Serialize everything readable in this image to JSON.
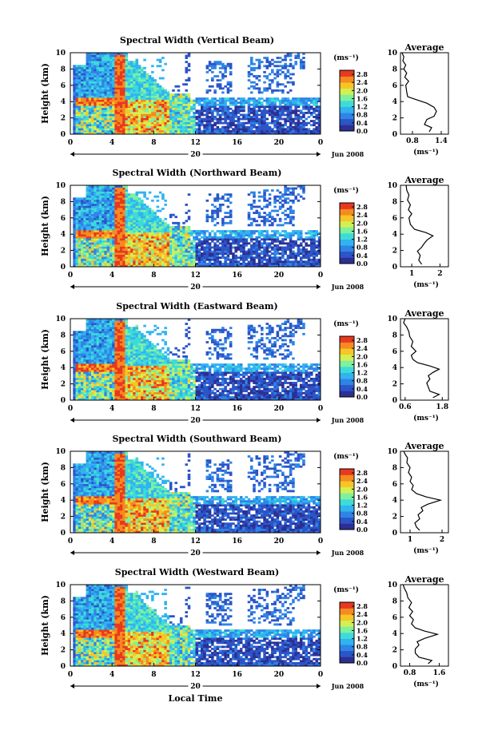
{
  "figure": {
    "xlabel": "Local Time",
    "date_label": "Jun 2008",
    "day_label": "20",
    "unit_label": "(ms⁻¹)",
    "average_title": "Average",
    "colors": {
      "colormap": [
        "#2c2f93",
        "#2b55c8",
        "#2f84e6",
        "#30b3f0",
        "#3ddbd8",
        "#7ff0a0",
        "#d3f052",
        "#f7c527",
        "#f58a1f",
        "#e8381e"
      ],
      "line": "#000000"
    }
  },
  "chart_data": [
    {
      "type": "heatmap",
      "title": "Spectral Width (Vertical Beam)",
      "ylabel": "Height (km)",
      "x_ticks": [
        "0",
        "4",
        "8",
        "12",
        "16",
        "20",
        "0"
      ],
      "y_ticks": [
        "0",
        "2",
        "4",
        "6",
        "8",
        "10"
      ],
      "xlim": [
        0,
        24
      ],
      "ylim": [
        0,
        10
      ],
      "colorbar": {
        "label": "(ms⁻¹)",
        "ticks": [
          "0.0",
          "0.4",
          "0.8",
          "1.2",
          "1.6",
          "2.0",
          "2.4",
          "2.8"
        ],
        "range": [
          0,
          3.0
        ]
      },
      "average_profile": {
        "xlabel": "(ms⁻¹)",
        "x_ticks": [
          "0.8",
          "1.4"
        ],
        "xlim": [
          0.55,
          1.55
        ],
        "y_ticks": [
          "0",
          "2",
          "4",
          "6",
          "8",
          "10"
        ],
        "points": [
          [
            1.15,
            0.3
          ],
          [
            1.2,
            0.8
          ],
          [
            1.05,
            1.2
          ],
          [
            1.1,
            1.8
          ],
          [
            1.25,
            2.2
          ],
          [
            1.3,
            2.8
          ],
          [
            1.25,
            3.3
          ],
          [
            1.1,
            3.8
          ],
          [
            0.9,
            4.2
          ],
          [
            0.7,
            4.6
          ],
          [
            0.68,
            5.2
          ],
          [
            0.66,
            6.0
          ],
          [
            0.72,
            6.5
          ],
          [
            0.64,
            7.0
          ],
          [
            0.68,
            7.5
          ],
          [
            0.62,
            8.0
          ],
          [
            0.66,
            8.5
          ],
          [
            0.6,
            9.0
          ],
          [
            0.62,
            9.5
          ],
          [
            0.58,
            10.0
          ]
        ]
      }
    },
    {
      "type": "heatmap",
      "title": "Spectral Width (Northward Beam)",
      "ylabel": "Height (km)",
      "x_ticks": [
        "0",
        "4",
        "8",
        "12",
        "16",
        "20",
        "0"
      ],
      "y_ticks": [
        "0",
        "2",
        "4",
        "6",
        "8",
        "10"
      ],
      "xlim": [
        0,
        24
      ],
      "ylim": [
        0,
        10
      ],
      "colorbar": {
        "label": "(ms⁻¹)",
        "ticks": [
          "0.0",
          "0.4",
          "0.8",
          "1.2",
          "1.6",
          "2.0",
          "2.4",
          "2.8"
        ],
        "range": [
          0,
          3.0
        ]
      },
      "average_profile": {
        "xlabel": "(ms⁻¹)",
        "x_ticks": [
          "1",
          "2"
        ],
        "xlim": [
          0.6,
          2.3
        ],
        "y_ticks": [
          "0",
          "2",
          "4",
          "6",
          "8",
          "10"
        ],
        "points": [
          [
            1.35,
            0.3
          ],
          [
            1.25,
            0.8
          ],
          [
            1.3,
            1.4
          ],
          [
            1.2,
            1.9
          ],
          [
            1.35,
            2.4
          ],
          [
            1.45,
            2.9
          ],
          [
            1.55,
            3.3
          ],
          [
            1.75,
            3.8
          ],
          [
            1.5,
            4.2
          ],
          [
            1.1,
            4.6
          ],
          [
            0.95,
            5.2
          ],
          [
            0.9,
            6.0
          ],
          [
            1.0,
            6.5
          ],
          [
            0.88,
            7.0
          ],
          [
            0.95,
            7.6
          ],
          [
            0.85,
            8.2
          ],
          [
            0.9,
            8.8
          ],
          [
            0.82,
            9.4
          ],
          [
            0.8,
            10.0
          ]
        ]
      }
    },
    {
      "type": "heatmap",
      "title": "Spectral Width (Eastward Beam)",
      "ylabel": "Height (km)",
      "x_ticks": [
        "0",
        "4",
        "8",
        "12",
        "16",
        "20",
        "0"
      ],
      "y_ticks": [
        "0",
        "2",
        "4",
        "6",
        "8",
        "10"
      ],
      "xlim": [
        0,
        24
      ],
      "ylim": [
        0,
        10
      ],
      "colorbar": {
        "label": "(ms⁻¹)",
        "ticks": [
          "0.0",
          "0.4",
          "0.8",
          "1.2",
          "1.6",
          "2.0",
          "2.4",
          "2.8"
        ],
        "range": [
          0,
          3.0
        ]
      },
      "average_profile": {
        "xlabel": "(ms⁻¹)",
        "x_ticks": [
          "0.6",
          "1.8"
        ],
        "xlim": [
          0.45,
          2.0
        ],
        "y_ticks": [
          "0",
          "2",
          "4",
          "6",
          "8",
          "10"
        ],
        "points": [
          [
            1.5,
            0.3
          ],
          [
            1.7,
            0.7
          ],
          [
            1.4,
            1.1
          ],
          [
            1.35,
            1.6
          ],
          [
            1.3,
            2.1
          ],
          [
            1.4,
            2.6
          ],
          [
            1.35,
            3.0
          ],
          [
            1.5,
            3.4
          ],
          [
            1.7,
            3.8
          ],
          [
            1.4,
            4.2
          ],
          [
            1.0,
            4.6
          ],
          [
            0.85,
            5.0
          ],
          [
            0.8,
            5.5
          ],
          [
            0.95,
            6.0
          ],
          [
            0.8,
            6.6
          ],
          [
            0.85,
            7.2
          ],
          [
            0.75,
            7.8
          ],
          [
            0.72,
            8.4
          ],
          [
            0.65,
            9.0
          ],
          [
            0.55,
            9.5
          ],
          [
            0.6,
            10.0
          ]
        ]
      }
    },
    {
      "type": "heatmap",
      "title": "Spectral Width (Southward Beam)",
      "ylabel": "Height (km)",
      "x_ticks": [
        "0",
        "4",
        "8",
        "12",
        "16",
        "20",
        "0"
      ],
      "y_ticks": [
        "0",
        "2",
        "4",
        "6",
        "8",
        "10"
      ],
      "xlim": [
        0,
        24
      ],
      "ylim": [
        0,
        10
      ],
      "colorbar": {
        "label": "(ms⁻¹)",
        "ticks": [
          "0.0",
          "0.4",
          "0.8",
          "1.2",
          "1.6",
          "2.0",
          "2.4",
          "2.8"
        ],
        "range": [
          0,
          3.0
        ]
      },
      "average_profile": {
        "xlabel": "(ms⁻¹)",
        "x_ticks": [
          "1",
          "2"
        ],
        "xlim": [
          0.7,
          2.2
        ],
        "y_ticks": [
          "0",
          "2",
          "4",
          "6",
          "8",
          "10"
        ],
        "points": [
          [
            1.3,
            0.3
          ],
          [
            1.2,
            0.7
          ],
          [
            1.15,
            1.2
          ],
          [
            1.3,
            1.7
          ],
          [
            1.25,
            2.2
          ],
          [
            1.4,
            2.7
          ],
          [
            1.35,
            3.1
          ],
          [
            1.55,
            3.5
          ],
          [
            1.95,
            4.0
          ],
          [
            1.5,
            4.4
          ],
          [
            1.2,
            4.8
          ],
          [
            1.05,
            5.3
          ],
          [
            1.1,
            5.8
          ],
          [
            1.0,
            6.3
          ],
          [
            1.05,
            6.8
          ],
          [
            0.95,
            7.4
          ],
          [
            1.0,
            8.0
          ],
          [
            0.9,
            8.6
          ],
          [
            0.92,
            9.2
          ],
          [
            0.85,
            9.6
          ],
          [
            0.8,
            10.0
          ]
        ]
      }
    },
    {
      "type": "heatmap",
      "title": "Spectral Width (Westward Beam)",
      "ylabel": "Height (km)",
      "x_ticks": [
        "0",
        "4",
        "8",
        "12",
        "16",
        "20",
        "0"
      ],
      "y_ticks": [
        "0",
        "2",
        "4",
        "6",
        "8",
        "10"
      ],
      "xlim": [
        0,
        24
      ],
      "ylim": [
        0,
        10
      ],
      "colorbar": {
        "label": "(ms⁻¹)",
        "ticks": [
          "0.0",
          "0.4",
          "0.8",
          "1.2",
          "1.6",
          "2.0",
          "2.4",
          "2.8"
        ],
        "range": [
          0,
          3.0
        ]
      },
      "average_profile": {
        "xlabel": "(ms⁻¹)",
        "x_ticks": [
          "0.8",
          "1.6"
        ],
        "xlim": [
          0.55,
          1.85
        ],
        "y_ticks": [
          "0",
          "2",
          "4",
          "6",
          "8",
          "10"
        ],
        "points": [
          [
            1.3,
            0.3
          ],
          [
            1.4,
            0.7
          ],
          [
            1.05,
            1.1
          ],
          [
            0.95,
            1.6
          ],
          [
            0.95,
            2.1
          ],
          [
            1.05,
            2.6
          ],
          [
            1.0,
            3.0
          ],
          [
            1.2,
            3.4
          ],
          [
            1.55,
            3.9
          ],
          [
            1.2,
            4.3
          ],
          [
            0.95,
            4.7
          ],
          [
            0.85,
            5.2
          ],
          [
            0.9,
            5.7
          ],
          [
            0.8,
            6.2
          ],
          [
            0.88,
            6.7
          ],
          [
            0.78,
            7.2
          ],
          [
            0.85,
            7.8
          ],
          [
            0.75,
            8.4
          ],
          [
            0.72,
            9.0
          ],
          [
            0.66,
            9.5
          ],
          [
            0.62,
            10.0
          ]
        ]
      }
    }
  ]
}
